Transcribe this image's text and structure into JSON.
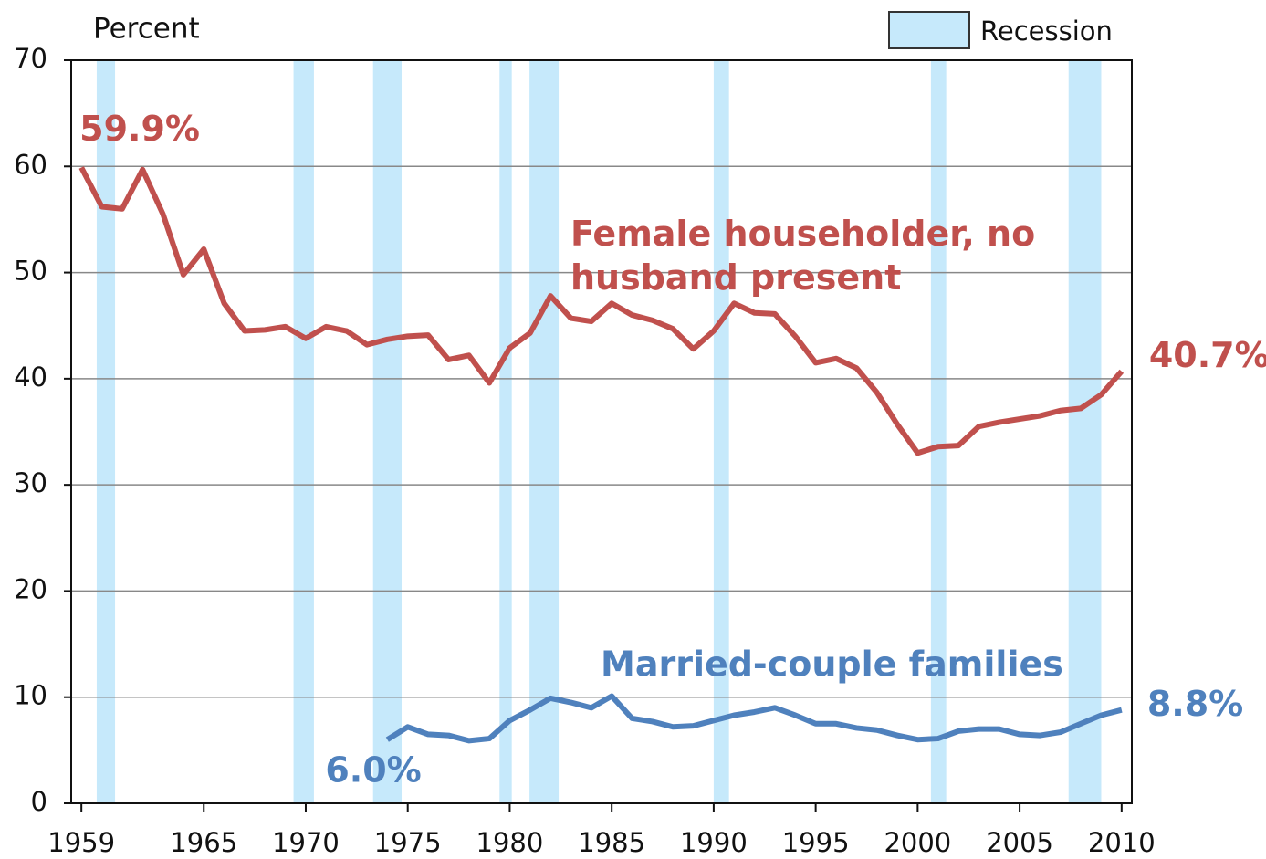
{
  "chart_data": {
    "type": "line",
    "y_label": "Percent",
    "x": [
      1959,
      1960,
      1961,
      1962,
      1963,
      1964,
      1965,
      1966,
      1967,
      1968,
      1969,
      1970,
      1971,
      1972,
      1973,
      1974,
      1975,
      1976,
      1977,
      1978,
      1979,
      1980,
      1981,
      1982,
      1983,
      1984,
      1985,
      1986,
      1987,
      1988,
      1989,
      1990,
      1991,
      1992,
      1993,
      1994,
      1995,
      1996,
      1997,
      1998,
      1999,
      2000,
      2001,
      2002,
      2003,
      2004,
      2005,
      2006,
      2007,
      2008,
      2009,
      2010
    ],
    "series": [
      {
        "name": "Female householder, no husband present",
        "color": "#c0504d",
        "values": [
          59.9,
          56.2,
          56.0,
          59.7,
          55.5,
          49.8,
          52.2,
          47.1,
          44.5,
          44.6,
          44.9,
          43.8,
          44.9,
          44.5,
          43.2,
          43.7,
          44.0,
          44.1,
          41.8,
          42.2,
          39.6,
          42.9,
          44.3,
          47.8,
          45.7,
          45.4,
          47.1,
          46.0,
          45.5,
          44.7,
          42.8,
          44.5,
          47.1,
          46.2,
          46.1,
          44.0,
          41.5,
          41.9,
          41.0,
          38.7,
          35.7,
          33.0,
          33.6,
          33.7,
          35.5,
          35.9,
          36.2,
          36.5,
          37.0,
          37.2,
          38.5,
          40.7
        ],
        "value_labels": [
          "59.9%",
          null,
          null,
          null,
          null,
          null,
          null,
          null,
          null,
          null,
          null,
          null,
          null,
          null,
          null,
          null,
          null,
          null,
          null,
          null,
          null,
          null,
          null,
          null,
          null,
          null,
          null,
          null,
          null,
          null,
          null,
          null,
          null,
          null,
          null,
          null,
          null,
          null,
          null,
          null,
          null,
          null,
          null,
          null,
          null,
          null,
          null,
          null,
          null,
          null,
          null,
          "40.7%"
        ]
      },
      {
        "name": "Married-couple families",
        "color": "#4f81bd",
        "values": [
          null,
          null,
          null,
          null,
          null,
          null,
          null,
          null,
          null,
          null,
          null,
          null,
          null,
          null,
          null,
          6.0,
          7.2,
          6.5,
          6.4,
          5.9,
          6.1,
          7.8,
          8.8,
          9.9,
          9.5,
          9.0,
          10.1,
          8.0,
          7.7,
          7.2,
          7.3,
          7.8,
          8.3,
          8.6,
          9.0,
          8.3,
          7.5,
          7.5,
          7.1,
          6.9,
          6.4,
          6.0,
          6.1,
          6.8,
          7.0,
          7.0,
          6.5,
          6.4,
          6.7,
          7.5,
          8.3,
          8.8
        ],
        "value_labels": [
          null,
          null,
          null,
          null,
          null,
          null,
          null,
          null,
          null,
          null,
          null,
          null,
          null,
          null,
          null,
          "6.0%",
          null,
          null,
          null,
          null,
          null,
          null,
          null,
          null,
          null,
          null,
          null,
          null,
          null,
          null,
          null,
          null,
          null,
          null,
          null,
          null,
          null,
          null,
          null,
          null,
          null,
          null,
          null,
          null,
          null,
          null,
          null,
          null,
          null,
          null,
          null,
          "8.8%"
        ]
      }
    ],
    "recession_label": "Recession",
    "recession_color": "#c6e9fb",
    "recessions": [
      [
        1959.75,
        1960.65
      ],
      [
        1969.4,
        1970.4
      ],
      [
        1973.3,
        1974.7
      ],
      [
        1979.5,
        1980.1
      ],
      [
        1980.97,
        1982.4
      ],
      [
        1990.0,
        1990.75
      ],
      [
        2000.65,
        2001.4
      ],
      [
        2007.4,
        2009.0
      ]
    ],
    "xlim": [
      1958.5,
      2010.5
    ],
    "xticks": [
      1959,
      1965,
      1970,
      1975,
      1980,
      1985,
      1990,
      1995,
      2000,
      2005,
      2010
    ],
    "ylim": [
      0,
      70
    ],
    "yticks": [
      0,
      10,
      20,
      30,
      40,
      50,
      60,
      70
    ],
    "grid": true
  }
}
